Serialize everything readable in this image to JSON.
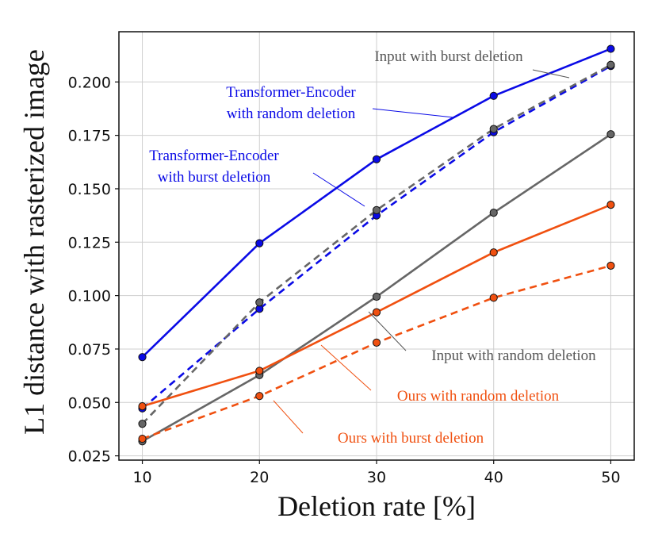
{
  "chart_data": {
    "type": "line",
    "xlabel": "Deletion rate [%]",
    "ylabel": "L1 distance with rasterized image",
    "x": [
      10,
      20,
      30,
      40,
      50
    ],
    "x_ticks": [
      "10",
      "20",
      "30",
      "40",
      "50"
    ],
    "xlim": [
      8,
      52
    ],
    "y_ticks": [
      "0.025",
      "0.050",
      "0.075",
      "0.100",
      "0.125",
      "0.150",
      "0.175",
      "0.200"
    ],
    "ylim": [
      0.023,
      0.2235
    ],
    "grid": true,
    "legend": "none",
    "series": [
      {
        "name": "Transformer-Encoder with random deletion",
        "values": [
          0.0712,
          0.1245,
          0.1638,
          0.1935,
          0.2155
        ],
        "color": "#0a0ae6",
        "dashed": false
      },
      {
        "name": "Transformer-Encoder with burst deletion",
        "values": [
          0.0472,
          0.0938,
          0.1375,
          0.1765,
          0.2075
        ],
        "color": "#0a0ae6",
        "dashed": true
      },
      {
        "name": "Input with burst deletion",
        "values": [
          0.04,
          0.0968,
          0.14,
          0.178,
          0.208
        ],
        "color": "#666666",
        "dashed": true
      },
      {
        "name": "Input with random deletion",
        "values": [
          0.0318,
          0.0628,
          0.0995,
          0.1388,
          0.1755
        ],
        "color": "#666666",
        "dashed": false
      },
      {
        "name": "Ours with random deletion",
        "values": [
          0.0482,
          0.0648,
          0.0922,
          0.1202,
          0.1425
        ],
        "color": "#f05010",
        "dashed": false
      },
      {
        "name": "Ours with burst deletion",
        "values": [
          0.033,
          0.053,
          0.078,
          0.099,
          0.114
        ],
        "color": "#f05010",
        "dashed": true
      }
    ],
    "annotations": [
      {
        "lines": [
          "Transformer-Encoder",
          "with random deletion"
        ],
        "color": "#0a0ae6"
      },
      {
        "lines": [
          "Transformer-Encoder",
          "with burst deletion"
        ],
        "color": "#0a0ae6"
      },
      {
        "lines": [
          "Input with burst deletion"
        ],
        "color": "#555555"
      },
      {
        "lines": [
          "Input with random deletion"
        ],
        "color": "#555555"
      },
      {
        "lines": [
          "Ours with random deletion"
        ],
        "color": "#f05010"
      },
      {
        "lines": [
          "Ours with burst deletion"
        ],
        "color": "#f05010"
      }
    ]
  }
}
